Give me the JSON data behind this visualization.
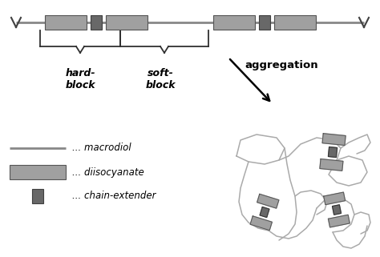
{
  "bg_color": "#ffffff",
  "line_color": "#888888",
  "rect_color": "#a0a0a0",
  "dark_rect_color": "#686868",
  "text_color": "#000000",
  "hard_block_label": "hard-\nblock",
  "soft_block_label": "soft-\nblock",
  "aggregation_label": "aggregation",
  "macrodiol_label": "... macrodiol",
  "diisocyanate_label": "... diisocyanate",
  "chain_extender_label": "... chain-extender",
  "figsize": [
    4.74,
    3.21
  ],
  "dpi": 100
}
